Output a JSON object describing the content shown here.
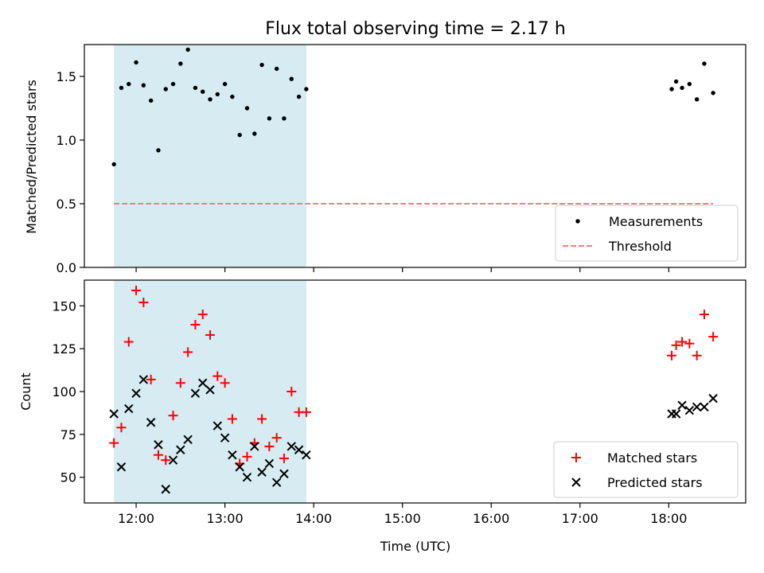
{
  "chart_data": [
    {
      "type": "scatter",
      "title": "Flux total observing time = 2.17 h",
      "xlabel": "",
      "ylabel": "Matched/Predicted stars",
      "xlim": [
        "11:25",
        "18:52"
      ],
      "ylim": [
        0,
        1.75
      ],
      "yticks": [
        "0.0",
        "0.5",
        "1.0",
        "1.5"
      ],
      "shaded_span": [
        "11:45",
        "13:55"
      ],
      "shaded_color": "#add8e6",
      "legend_position": "lower-right",
      "threshold": {
        "name": "Threshold",
        "y": 0.5,
        "x": [
          "11:45",
          "18:30"
        ],
        "color": "#f08080",
        "style": "dashed"
      },
      "series": [
        {
          "name": "Measurements",
          "color": "#000000",
          "x": [
            "11:45",
            "11:50",
            "11:55",
            "12:00",
            "12:05",
            "12:10",
            "12:15",
            "12:20",
            "12:25",
            "12:30",
            "12:35",
            "12:40",
            "12:45",
            "12:50",
            "12:55",
            "13:00",
            "13:05",
            "13:10",
            "13:15",
            "13:20",
            "13:25",
            "13:30",
            "13:35",
            "13:40",
            "13:45",
            "13:50",
            "13:55",
            "18:02",
            "18:05",
            "18:09",
            "18:14",
            "18:19",
            "18:24",
            "18:30"
          ],
          "y": [
            0.81,
            1.41,
            1.44,
            1.61,
            1.43,
            1.31,
            0.92,
            1.4,
            1.44,
            1.6,
            1.71,
            1.41,
            1.38,
            1.32,
            1.36,
            1.44,
            1.34,
            1.04,
            1.25,
            1.05,
            1.59,
            1.17,
            1.56,
            1.17,
            1.48,
            1.34,
            1.4,
            1.4,
            1.46,
            1.41,
            1.44,
            1.32,
            1.6,
            1.37
          ]
        }
      ]
    },
    {
      "type": "scatter",
      "title": "",
      "xlabel": "Time (UTC)",
      "ylabel": "Count",
      "xlim": [
        "11:25",
        "18:52"
      ],
      "ylim": [
        35,
        165
      ],
      "yticks": [
        "50",
        "75",
        "100",
        "125",
        "150"
      ],
      "xticks": [
        "12:00",
        "13:00",
        "14:00",
        "15:00",
        "16:00",
        "17:00",
        "18:00"
      ],
      "shaded_span": [
        "11:45",
        "13:55"
      ],
      "shaded_color": "#add8e6",
      "legend_position": "lower-right",
      "series": [
        {
          "name": "Matched stars",
          "marker": "plus",
          "color": "#ff0000",
          "x": [
            "11:45",
            "11:50",
            "11:55",
            "12:00",
            "12:05",
            "12:10",
            "12:15",
            "12:20",
            "12:25",
            "12:30",
            "12:35",
            "12:40",
            "12:45",
            "12:50",
            "12:55",
            "13:00",
            "13:05",
            "13:10",
            "13:15",
            "13:20",
            "13:25",
            "13:30",
            "13:35",
            "13:40",
            "13:45",
            "13:50",
            "13:55",
            "18:02",
            "18:05",
            "18:09",
            "18:14",
            "18:19",
            "18:24",
            "18:30"
          ],
          "y": [
            70,
            79,
            129,
            159,
            152,
            107,
            63,
            60,
            86,
            105,
            123,
            139,
            145,
            133,
            109,
            105,
            84,
            58,
            62,
            70,
            84,
            68,
            73,
            61,
            100,
            88,
            88,
            121,
            127,
            129,
            128,
            121,
            145,
            132
          ]
        },
        {
          "name": "Predicted stars",
          "marker": "x",
          "color": "#000000",
          "x": [
            "11:45",
            "11:50",
            "11:55",
            "12:00",
            "12:05",
            "12:10",
            "12:15",
            "12:20",
            "12:25",
            "12:30",
            "12:35",
            "12:40",
            "12:45",
            "12:50",
            "12:55",
            "13:00",
            "13:05",
            "13:10",
            "13:15",
            "13:20",
            "13:25",
            "13:30",
            "13:35",
            "13:40",
            "13:45",
            "13:50",
            "13:55",
            "18:02",
            "18:05",
            "18:09",
            "18:14",
            "18:19",
            "18:24",
            "18:30"
          ],
          "y": [
            87,
            56,
            90,
            99,
            107,
            82,
            69,
            43,
            60,
            66,
            72,
            99,
            105,
            101,
            80,
            73,
            63,
            56,
            50,
            68,
            53,
            58,
            47,
            52,
            68,
            66,
            63,
            87,
            87,
            92,
            89,
            91,
            91,
            96
          ]
        }
      ]
    }
  ]
}
